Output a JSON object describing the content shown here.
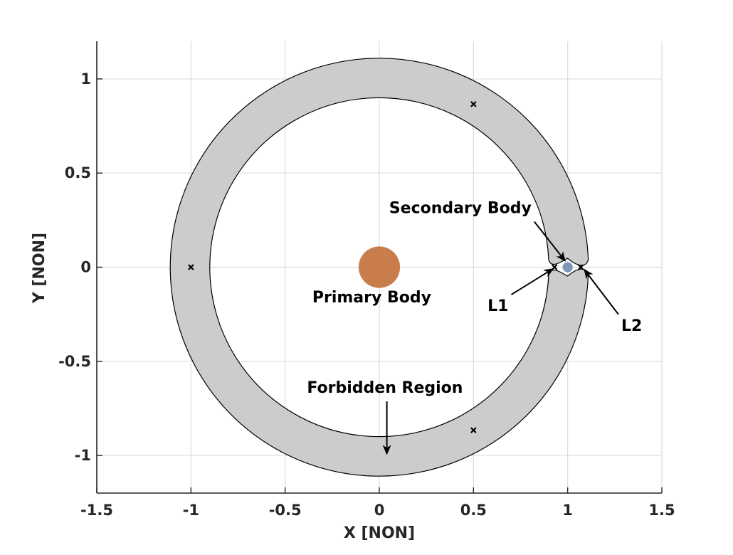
{
  "chart_data": {
    "type": "scatter",
    "title": "",
    "xlabel": "X [NON]",
    "ylabel": "Y [NON]",
    "xlim": [
      -1.5,
      1.5
    ],
    "ylim": [
      -1.2,
      1.2
    ],
    "xticks": [
      -1.5,
      -1,
      -0.5,
      0,
      0.5,
      1,
      1.5
    ],
    "yticks": [
      -1,
      -0.5,
      0,
      0.5,
      1
    ],
    "xtick_labels": [
      "-1.5",
      "-1",
      "-0.5",
      "0",
      "0.5",
      "1",
      "1.5"
    ],
    "ytick_labels": [
      "-1",
      "-0.5",
      "0",
      "0.5",
      "1"
    ],
    "grid": true,
    "forbidden_region": {
      "outer_radius": 1.11,
      "inner_radius": 0.9,
      "gap_x": 1.0,
      "gap_half_width_y": 0.04,
      "color": "#cccccc"
    },
    "primary_body": {
      "x": 0,
      "y": 0,
      "radius": 0.11,
      "color": "#c97d4b"
    },
    "secondary_body": {
      "x": 1.0,
      "y": 0,
      "radius": 0.027,
      "color": "#7e97b5"
    },
    "lagrange_points": [
      {
        "x": 0.93,
        "y": 0
      },
      {
        "x": 1.07,
        "y": 0
      },
      {
        "x": -1.0,
        "y": 0
      },
      {
        "x": 0.5,
        "y": 0.866
      },
      {
        "x": 0.5,
        "y": -0.866
      }
    ],
    "annotations": [
      {
        "text": "Secondary Body",
        "x": 0.43,
        "y": 0.31,
        "arrow_to": [
          0.985,
          0.035
        ]
      },
      {
        "text": "Primary Body",
        "x": -0.04,
        "y": -0.165,
        "arrow_to": null
      },
      {
        "text": "L1",
        "x": 0.63,
        "y": -0.21,
        "arrow_to": [
          0.92,
          -0.01
        ]
      },
      {
        "text": "L2",
        "x": 1.34,
        "y": -0.315,
        "arrow_to": [
          1.09,
          -0.015
        ]
      },
      {
        "text": "Forbidden Region",
        "x": 0.03,
        "y": -0.645,
        "arrow_to": [
          0.04,
          -0.99
        ]
      }
    ]
  }
}
